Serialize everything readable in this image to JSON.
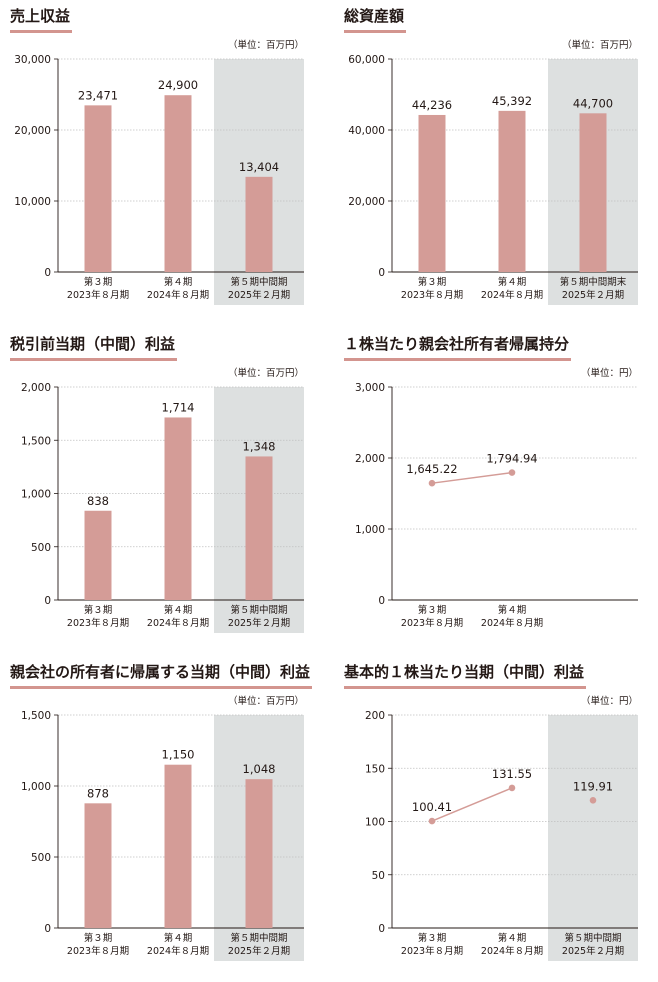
{
  "colors": {
    "bar": "#d49c97",
    "line": "#d49c97",
    "highlight": "#dde0e0",
    "axis": "#231815",
    "grid": "#c0c0c0"
  },
  "chart_data": [
    {
      "type": "bar",
      "title": "売上収益",
      "unit": "（単位：百万円）",
      "yticks": [
        "0",
        "10,000",
        "20,000",
        "30,000"
      ],
      "ylim": [
        0,
        30000
      ],
      "categories": [
        [
          "第３期",
          "2023年８月期"
        ],
        [
          "第４期",
          "2024年８月期"
        ],
        [
          "第５期中間期",
          "2025年２月期"
        ]
      ],
      "values": [
        23471,
        24900,
        13404
      ],
      "labels": [
        "23,471",
        "24,900",
        "13,404"
      ],
      "highlight_index": 2
    },
    {
      "type": "bar",
      "title": "総資産額",
      "unit": "（単位：百万円）",
      "yticks": [
        "0",
        "20,000",
        "40,000",
        "60,000"
      ],
      "ylim": [
        0,
        60000
      ],
      "categories": [
        [
          "第３期",
          "2023年８月期"
        ],
        [
          "第４期",
          "2024年８月期"
        ],
        [
          "第５期中間期末",
          "2025年２月期"
        ]
      ],
      "values": [
        44236,
        45392,
        44700
      ],
      "labels": [
        "44,236",
        "45,392",
        "44,700"
      ],
      "highlight_index": 2
    },
    {
      "type": "bar",
      "title": "税引前当期（中間）利益",
      "unit": "（単位：百万円）",
      "yticks": [
        "0",
        "500",
        "1,000",
        "1,500",
        "2,000"
      ],
      "ylim": [
        0,
        2000
      ],
      "categories": [
        [
          "第３期",
          "2023年８月期"
        ],
        [
          "第４期",
          "2024年８月期"
        ],
        [
          "第５期中間期",
          "2025年２月期"
        ]
      ],
      "values": [
        838,
        1714,
        1348
      ],
      "labels": [
        "838",
        "1,714",
        "1,348"
      ],
      "highlight_index": 2
    },
    {
      "type": "line",
      "title": "１株当たり親会社所有者帰属持分",
      "unit": "（単位：円）",
      "yticks": [
        "0",
        "1,000",
        "2,000",
        "3,000"
      ],
      "ylim": [
        0,
        3000
      ],
      "categories": [
        [
          "第３期",
          "2023年８月期"
        ],
        [
          "第４期",
          "2024年８月期"
        ]
      ],
      "values": [
        1645.22,
        1794.94
      ],
      "labels": [
        "1,645.22",
        "1,794.94"
      ],
      "highlight_index": null
    },
    {
      "type": "bar",
      "title": "親会社の所有者に帰属する当期（中間）利益",
      "unit": "（単位：百万円）",
      "yticks": [
        "0",
        "500",
        "1,000",
        "1,500"
      ],
      "ylim": [
        0,
        1500
      ],
      "categories": [
        [
          "第３期",
          "2023年８月期"
        ],
        [
          "第４期",
          "2024年８月期"
        ],
        [
          "第５期中間期",
          "2025年２月期"
        ]
      ],
      "values": [
        878,
        1150,
        1048
      ],
      "labels": [
        "878",
        "1,150",
        "1,048"
      ],
      "highlight_index": 2
    },
    {
      "type": "line",
      "title": "基本的１株当たり当期（中間）利益",
      "unit": "（単位：円）",
      "yticks": [
        "0",
        "50",
        "100",
        "150",
        "200"
      ],
      "ylim": [
        0,
        200
      ],
      "categories": [
        [
          "第３期",
          "2023年８月期"
        ],
        [
          "第４期",
          "2024年８月期"
        ],
        [
          "第５期中間期",
          "2025年２月期"
        ]
      ],
      "values": [
        100.41,
        131.55,
        119.91
      ],
      "labels": [
        "100.41",
        "131.55",
        "119.91"
      ],
      "highlight_index": 2,
      "connect_points": 2
    }
  ]
}
